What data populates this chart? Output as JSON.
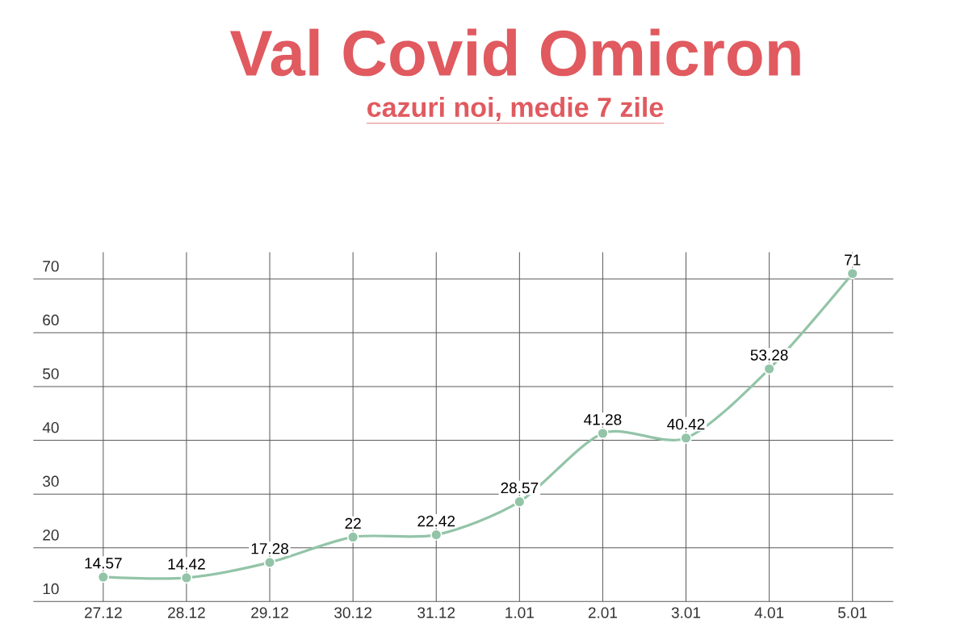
{
  "chart_data": {
    "type": "line",
    "title": "Val Covid Omicron",
    "subtitle": "cazuri noi, medie 7 zile",
    "categories": [
      "27.12",
      "28.12",
      "29.12",
      "30.12",
      "31.12",
      "1.01",
      "2.01",
      "3.01",
      "4.01",
      "5.01"
    ],
    "values": [
      14.57,
      14.42,
      17.28,
      22,
      22.42,
      28.57,
      41.28,
      40.42,
      53.28,
      71
    ],
    "color": "#93c4a8",
    "ylim": [
      10,
      75
    ],
    "yticks": [
      10,
      20,
      30,
      40,
      50,
      60,
      70
    ],
    "grid": true,
    "marker": "circle",
    "line_style": "solid",
    "data_labels": true
  }
}
